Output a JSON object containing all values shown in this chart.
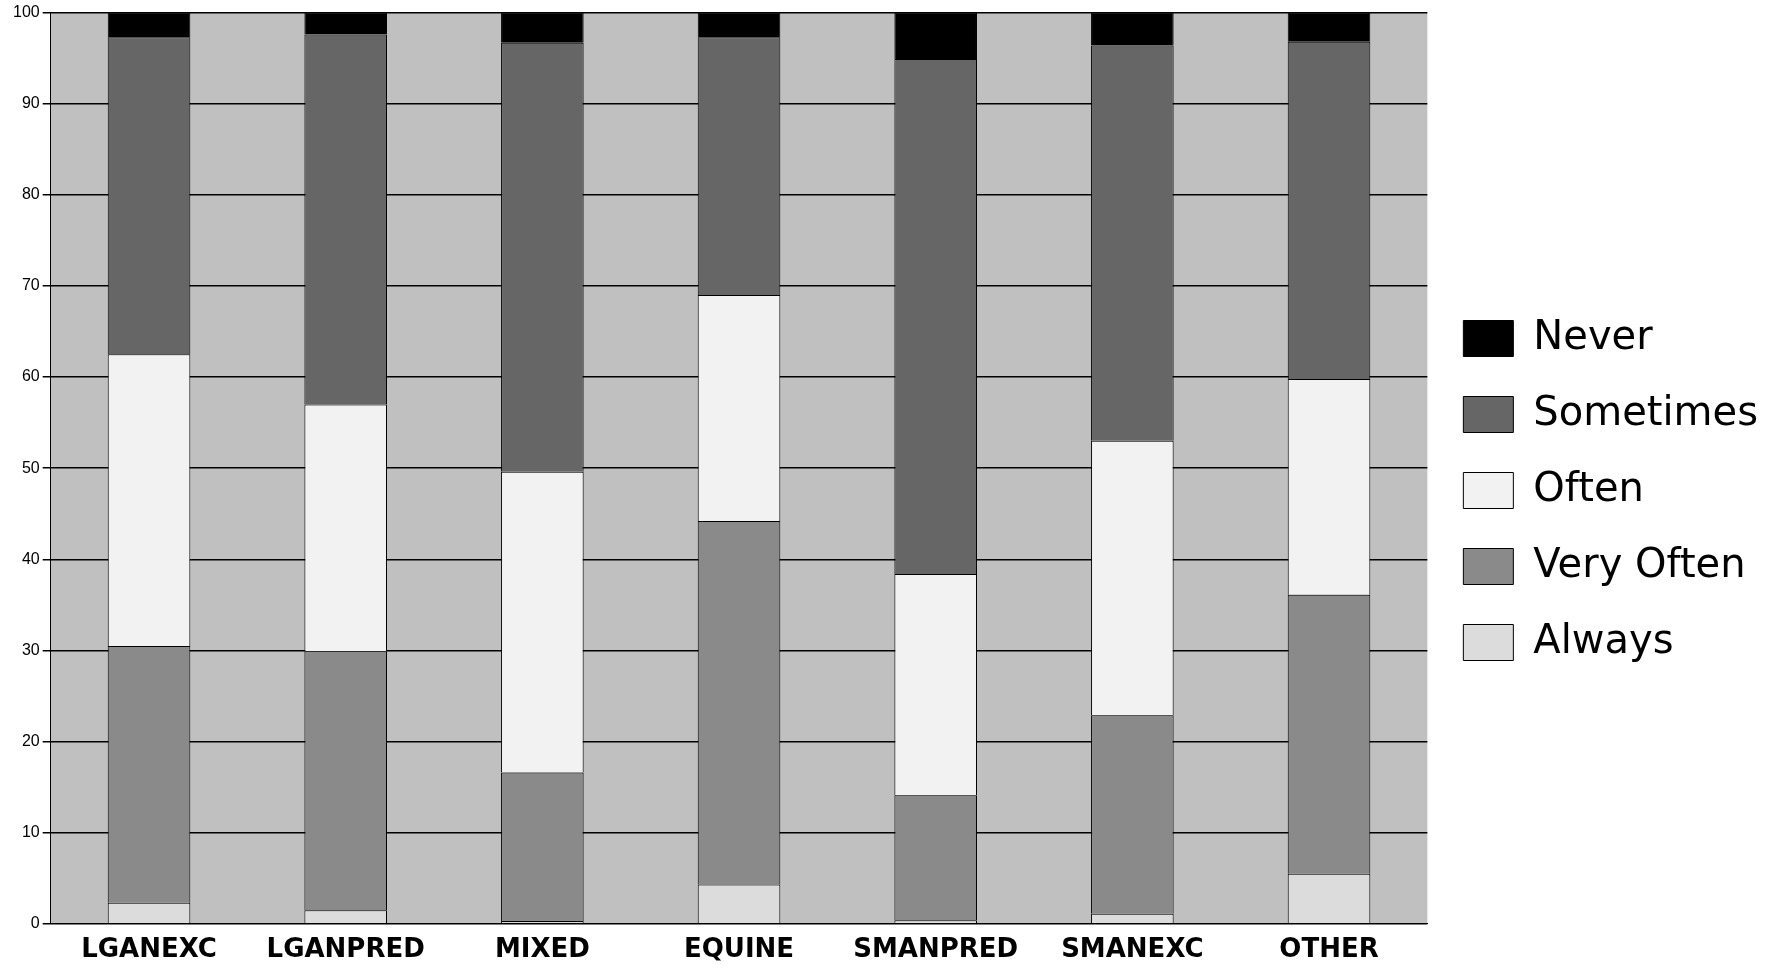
{
  "chart_data": {
    "type": "bar",
    "stacked": true,
    "categories": [
      "LGANEXC",
      "LGANPRED",
      "MIXED",
      "EQUINE",
      "SMANPRED",
      "SMANEXC",
      "OTHER"
    ],
    "series": [
      {
        "name": "Always",
        "color": "#dcdcdc",
        "values": [
          2.3,
          1.5,
          0.3,
          4.3,
          0.4,
          1.1,
          5.5
        ]
      },
      {
        "name": "Very Often",
        "color": "#8a8a8a",
        "values": [
          28.2,
          28.4,
          16.3,
          39.9,
          13.7,
          21.8,
          30.6
        ]
      },
      {
        "name": "Often",
        "color": "#f2f2f2",
        "values": [
          32,
          27.1,
          33,
          24.8,
          24.3,
          30.1,
          23.7
        ]
      },
      {
        "name": "Sometimes",
        "color": "#666666",
        "values": [
          34.8,
          40.6,
          47.1,
          28.3,
          56.5,
          43.4,
          37
        ]
      },
      {
        "name": "Never",
        "color": "#000000",
        "values": [
          2.7,
          2.4,
          3.3,
          2.7,
          5.1,
          3.6,
          3.2
        ]
      }
    ],
    "ylim": [
      0,
      100
    ],
    "yticks": [
      0,
      10,
      20,
      30,
      40,
      50,
      60,
      70,
      80,
      90,
      100
    ],
    "grid": "y",
    "legend": "right"
  }
}
